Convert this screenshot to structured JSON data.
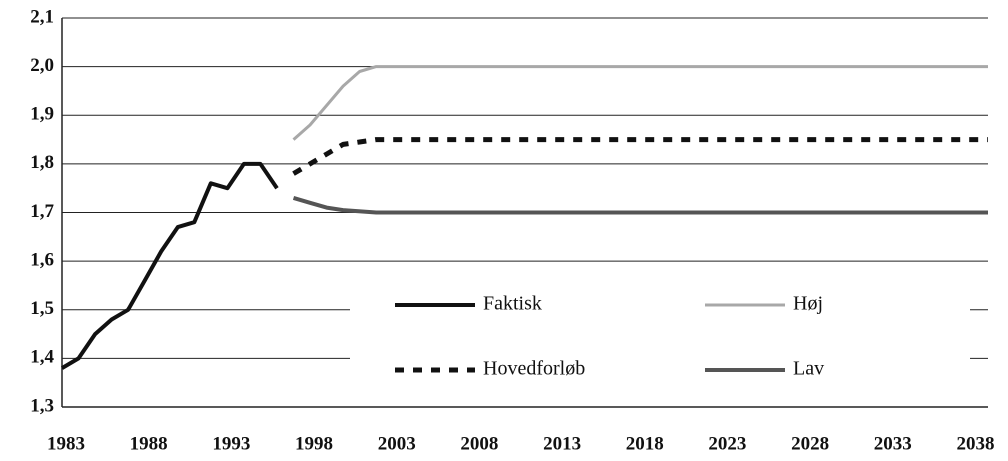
{
  "chart_data": {
    "type": "line",
    "xlim": [
      1983,
      2039
    ],
    "xticks": [
      1983,
      1988,
      1993,
      1998,
      2003,
      2008,
      2013,
      2018,
      2023,
      2028,
      2033,
      2038
    ],
    "ylim": [
      1.3,
      2.1
    ],
    "yticks": [
      {
        "value": 1.3,
        "label": "1,3"
      },
      {
        "value": 1.4,
        "label": "1,4"
      },
      {
        "value": 1.5,
        "label": "1,5"
      },
      {
        "value": 1.6,
        "label": "1,6"
      },
      {
        "value": 1.7,
        "label": "1,7"
      },
      {
        "value": 1.8,
        "label": "1,8"
      },
      {
        "value": 1.9,
        "label": "1,9"
      },
      {
        "value": 2.0,
        "label": "2,0"
      },
      {
        "value": 2.1,
        "label": "2,1"
      }
    ],
    "grid": true,
    "series": [
      {
        "name": "Faktisk",
        "color": "#111111",
        "line_style": "solid",
        "x": [
          1983,
          1984,
          1985,
          1986,
          1987,
          1988,
          1989,
          1990,
          1991,
          1992,
          1993,
          1994,
          1995,
          1996
        ],
        "values": [
          1.38,
          1.4,
          1.45,
          1.48,
          1.5,
          1.56,
          1.62,
          1.67,
          1.68,
          1.76,
          1.75,
          1.8,
          1.8,
          1.75
        ]
      },
      {
        "name": "Høj",
        "color": "#a8a8a8",
        "line_style": "solid",
        "x": [
          1997,
          1998,
          1999,
          2000,
          2001,
          2002,
          2039
        ],
        "values": [
          1.85,
          1.88,
          1.92,
          1.96,
          1.99,
          2.0,
          2.0
        ]
      },
      {
        "name": "Hovedforløb",
        "color": "#111111",
        "line_style": "dashed",
        "x": [
          1997,
          1998,
          1999,
          2000,
          2001,
          2002,
          2039
        ],
        "values": [
          1.78,
          1.8,
          1.82,
          1.84,
          1.845,
          1.85,
          1.85
        ]
      },
      {
        "name": "Lav",
        "color": "#555555",
        "line_style": "solid",
        "x": [
          1997,
          1998,
          1999,
          2000,
          2002,
          2039
        ],
        "values": [
          1.73,
          1.72,
          1.71,
          1.705,
          1.7,
          1.7
        ]
      }
    ]
  }
}
